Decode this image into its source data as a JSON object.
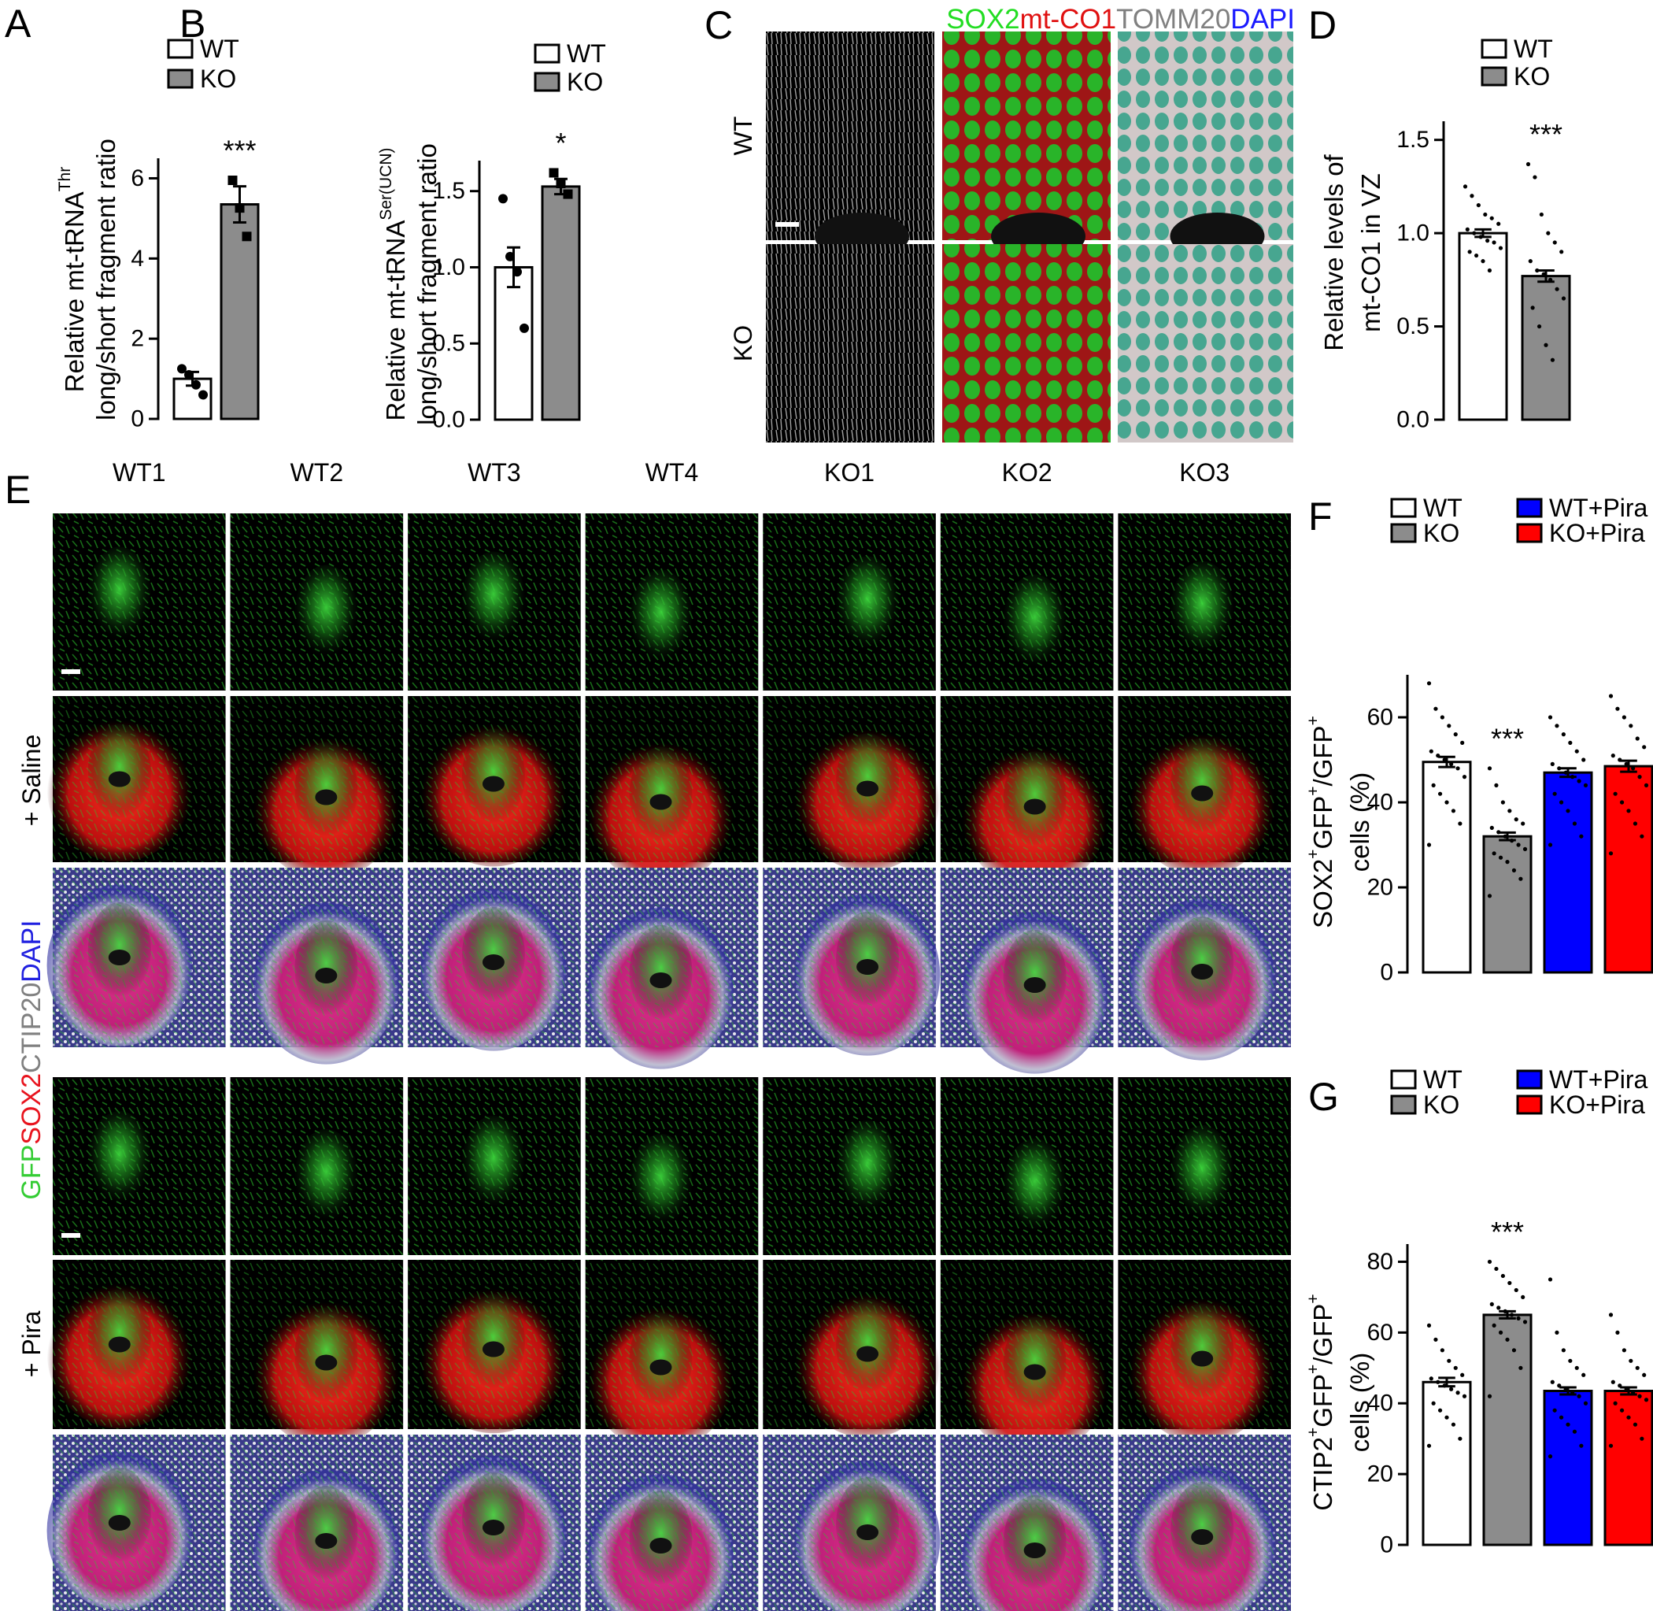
{
  "chart_data": [
    {
      "type": "bar",
      "panel": "A",
      "ylabel": [
        [
          {
            "text": "Relative mt-tRNA"
          },
          {
            "text": "Thr",
            "sup": true
          }
        ],
        [
          {
            "text": "long/short fragment ratio"
          }
        ]
      ],
      "ylim": [
        0,
        6.5
      ],
      "yticks": [
        0,
        2,
        4,
        6
      ],
      "series": [
        {
          "name": "WT",
          "color": "#ffffff",
          "marker": "circle",
          "values": [
            1.0
          ],
          "errors": [
            0.17
          ],
          "points": [
            1.25,
            1.1,
            0.85,
            0.6
          ]
        },
        {
          "name": "KO",
          "color": "#8c8c8c",
          "marker": "square",
          "values": [
            5.35
          ],
          "errors": [
            0.45
          ],
          "points": [
            5.95,
            5.26,
            4.55
          ]
        }
      ],
      "significance": [
        null,
        "***"
      ]
    },
    {
      "type": "bar",
      "panel": "B",
      "ylabel": [
        [
          {
            "text": "Relative mt-tRNA"
          },
          {
            "text": "Ser(UCN)",
            "sup": true
          }
        ],
        [
          {
            "text": "long/short fragment ratio"
          }
        ]
      ],
      "ylim": [
        0,
        1.7
      ],
      "yticks": [
        {
          "value": 0,
          "label": "0.0"
        },
        {
          "value": 0.5,
          "label": "0.5"
        },
        {
          "value": 1,
          "label": "1.0"
        },
        {
          "value": 1.5,
          "label": "1.5"
        }
      ],
      "series": [
        {
          "name": "WT",
          "color": "#ffffff",
          "marker": "circle",
          "values": [
            1.0
          ],
          "errors": [
            0.13
          ],
          "points": [
            1.45,
            1.07,
            0.97,
            0.6
          ]
        },
        {
          "name": "KO",
          "color": "#8c8c8c",
          "marker": "square",
          "values": [
            1.53
          ],
          "errors": [
            0.05
          ],
          "points": [
            1.62,
            1.55,
            1.48
          ]
        }
      ],
      "significance": [
        null,
        "*"
      ]
    },
    {
      "type": "bar",
      "panel": "D",
      "ylabel": [
        [
          {
            "text": "Relative levels of"
          }
        ],
        [
          {
            "text": "mt-CO1 in VZ"
          }
        ]
      ],
      "ylim": [
        0,
        1.6
      ],
      "yticks": [
        {
          "value": 0,
          "label": "0.0"
        },
        {
          "value": 0.5,
          "label": "0.5"
        },
        {
          "value": 1,
          "label": "1.0"
        },
        {
          "value": 1.5,
          "label": "1.5"
        }
      ],
      "series": [
        {
          "name": "WT",
          "color": "#ffffff",
          "marker": "circle",
          "values": [
            1.0
          ],
          "errors": [
            0.02
          ],
          "points": [
            1.25,
            1.2,
            1.15,
            1.1,
            1.08,
            1.05,
            1.02,
            1.0,
            0.98,
            0.96,
            0.95,
            0.92,
            0.9,
            0.88,
            0.85,
            0.8
          ]
        },
        {
          "name": "KO",
          "color": "#8c8c8c",
          "marker": "circle",
          "values": [
            0.77
          ],
          "errors": [
            0.03
          ],
          "points": [
            1.37,
            1.3,
            1.1,
            1.0,
            0.95,
            0.9,
            0.85,
            0.8,
            0.78,
            0.75,
            0.7,
            0.65,
            0.6,
            0.5,
            0.4,
            0.32
          ]
        }
      ],
      "significance": [
        null,
        "***"
      ]
    },
    {
      "type": "bar",
      "panel": "F",
      "ylabel": [
        [
          {
            "text": "SOX2"
          },
          {
            "text": "+",
            "sup": true
          },
          {
            "text": "GFP"
          },
          {
            "text": "+",
            "sup": true
          },
          {
            "text": "/GFP"
          },
          {
            "text": "+",
            "sup": true
          }
        ],
        [
          {
            "text": "cells (%)"
          }
        ]
      ],
      "ylim": [
        0,
        70
      ],
      "yticks": [
        0,
        20,
        40,
        60
      ],
      "series": [
        {
          "name": "WT",
          "color": "#ffffff",
          "marker": "circle",
          "values": [
            49.5
          ],
          "errors": [
            1.2
          ],
          "points": [
            68,
            62,
            60,
            58,
            56,
            54,
            52,
            51,
            50,
            49,
            48,
            46,
            44,
            42,
            40,
            38,
            35,
            30
          ]
        },
        {
          "name": "KO",
          "color": "#8c8c8c",
          "marker": "circle",
          "values": [
            32
          ],
          "errors": [
            0.9
          ],
          "points": [
            48,
            44,
            40,
            38,
            36,
            35,
            34,
            33,
            32,
            31,
            30,
            29,
            28,
            27,
            26,
            24,
            22,
            18
          ]
        },
        {
          "name": "WT+Pira",
          "color": "#0000ff",
          "marker": "circle",
          "values": [
            47
          ],
          "errors": [
            1.0
          ],
          "points": [
            60,
            58,
            56,
            54,
            52,
            50,
            49,
            48,
            47,
            46,
            45,
            44,
            42,
            40,
            38,
            35,
            32,
            30
          ]
        },
        {
          "name": "KO+Pira",
          "color": "#ff0000",
          "marker": "circle",
          "values": [
            48.5
          ],
          "errors": [
            1.3
          ],
          "points": [
            65,
            62,
            60,
            58,
            55,
            53,
            51,
            50,
            49,
            48,
            46,
            44,
            42,
            40,
            38,
            35,
            32,
            28
          ]
        }
      ],
      "significance": [
        null,
        "***",
        null,
        null
      ]
    },
    {
      "type": "bar",
      "panel": "G",
      "ylabel": [
        [
          {
            "text": "CTIP2"
          },
          {
            "text": "+",
            "sup": true
          },
          {
            "text": "GFP"
          },
          {
            "text": "+",
            "sup": true
          },
          {
            "text": "/GFP"
          },
          {
            "text": "+",
            "sup": true
          }
        ],
        [
          {
            "text": "cells (%)"
          }
        ]
      ],
      "ylim": [
        0,
        85
      ],
      "yticks": [
        0,
        20,
        40,
        60,
        80
      ],
      "series": [
        {
          "name": "WT",
          "color": "#ffffff",
          "marker": "circle",
          "values": [
            46
          ],
          "errors": [
            1.2
          ],
          "points": [
            62,
            58,
            55,
            52,
            50,
            48,
            47,
            46,
            45,
            44,
            43,
            42,
            40,
            38,
            36,
            34,
            30,
            28
          ]
        },
        {
          "name": "KO",
          "color": "#8c8c8c",
          "marker": "circle",
          "values": [
            65
          ],
          "errors": [
            1.0
          ],
          "points": [
            80,
            78,
            76,
            74,
            72,
            70,
            68,
            67,
            66,
            65,
            64,
            63,
            62,
            60,
            58,
            55,
            50,
            42
          ]
        },
        {
          "name": "WT+Pira",
          "color": "#0000ff",
          "marker": "circle",
          "values": [
            43.5
          ],
          "errors": [
            1.0
          ],
          "points": [
            75,
            60,
            55,
            52,
            50,
            48,
            46,
            45,
            44,
            43,
            42,
            40,
            38,
            36,
            34,
            32,
            28,
            25
          ]
        },
        {
          "name": "KO+Pira",
          "color": "#ff0000",
          "marker": "circle",
          "values": [
            43.5
          ],
          "errors": [
            1.0
          ],
          "points": [
            65,
            60,
            55,
            52,
            50,
            48,
            46,
            45,
            44,
            43,
            42,
            41,
            40,
            38,
            36,
            34,
            30,
            28
          ]
        }
      ],
      "significance": [
        null,
        "***",
        null,
        null
      ]
    }
  ],
  "images": {
    "C": {
      "panel": "C",
      "title_parts": [
        {
          "text": "SOX2",
          "color": "#22dd22"
        },
        {
          "text": "mt-CO1",
          "color": "#e01010"
        },
        {
          "text": "TOMM20",
          "color": "#808080"
        },
        {
          "text": "DAPI",
          "color": "#1a1aff"
        }
      ],
      "rows": [
        "WT",
        "KO"
      ]
    },
    "E": {
      "panel": "E",
      "columns": [
        "WT1",
        "WT2",
        "WT3",
        "WT4",
        "KO1",
        "KO2",
        "KO3"
      ],
      "rows": [
        "+ Saline",
        "+ Pira"
      ],
      "stain_parts": [
        {
          "text": "GFP",
          "color": "#33cc33"
        },
        {
          "text": "SOX2",
          "color": "#e8141e"
        },
        {
          "text": "CTIP20",
          "color": "#808080"
        },
        {
          "text": "DAPI",
          "color": "#2020e0"
        }
      ]
    }
  }
}
